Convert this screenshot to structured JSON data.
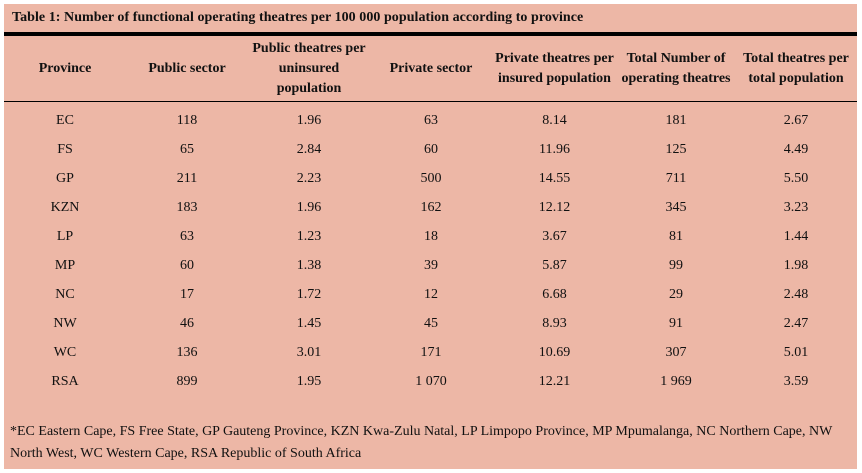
{
  "caption": "Table 1: Number of functional operating theatres per 100 000 population according to province",
  "columns": [
    "Province",
    "Public sector",
    "Public theatres per uninsured population",
    "Private sector",
    "Private theatres per  insured population",
    "Total Number of operating theatres",
    "Total theatres per total population"
  ],
  "rows": [
    [
      "EC",
      "118",
      "1.96",
      "63",
      "8.14",
      "181",
      "2.67"
    ],
    [
      "FS",
      "65",
      "2.84",
      "60",
      "11.96",
      "125",
      "4.49"
    ],
    [
      "GP",
      "211",
      "2.23",
      "500",
      "14.55",
      "711",
      "5.50"
    ],
    [
      "KZN",
      "183",
      "1.96",
      "162",
      "12.12",
      "345",
      "3.23"
    ],
    [
      "LP",
      "63",
      "1.23",
      "18",
      "3.67",
      "81",
      "1.44"
    ],
    [
      "MP",
      "60",
      "1.38",
      "39",
      "5.87",
      "99",
      "1.98"
    ],
    [
      "NC",
      "17",
      "1.72",
      "12",
      "6.68",
      "29",
      "2.48"
    ],
    [
      "NW",
      "46",
      "1.45",
      "45",
      "8.93",
      "91",
      "2.47"
    ],
    [
      "WC",
      "136",
      "3.01",
      "171",
      "10.69",
      "307",
      "5.01"
    ],
    [
      "RSA",
      "899",
      "1.95",
      "1 070",
      "12.21",
      "1 969",
      "3.59"
    ]
  ],
  "footnote": "*EC Eastern Cape, FS Free State, GP Gauteng Province, KZN Kwa-Zulu Natal, LP Limpopo Province, MP Mpumalanga, NC Northern Cape, NW North West, WC Western Cape, RSA Republic of South Africa",
  "colors": {
    "background": "#edb7a6",
    "rule": "#000000",
    "text": "#111111"
  }
}
